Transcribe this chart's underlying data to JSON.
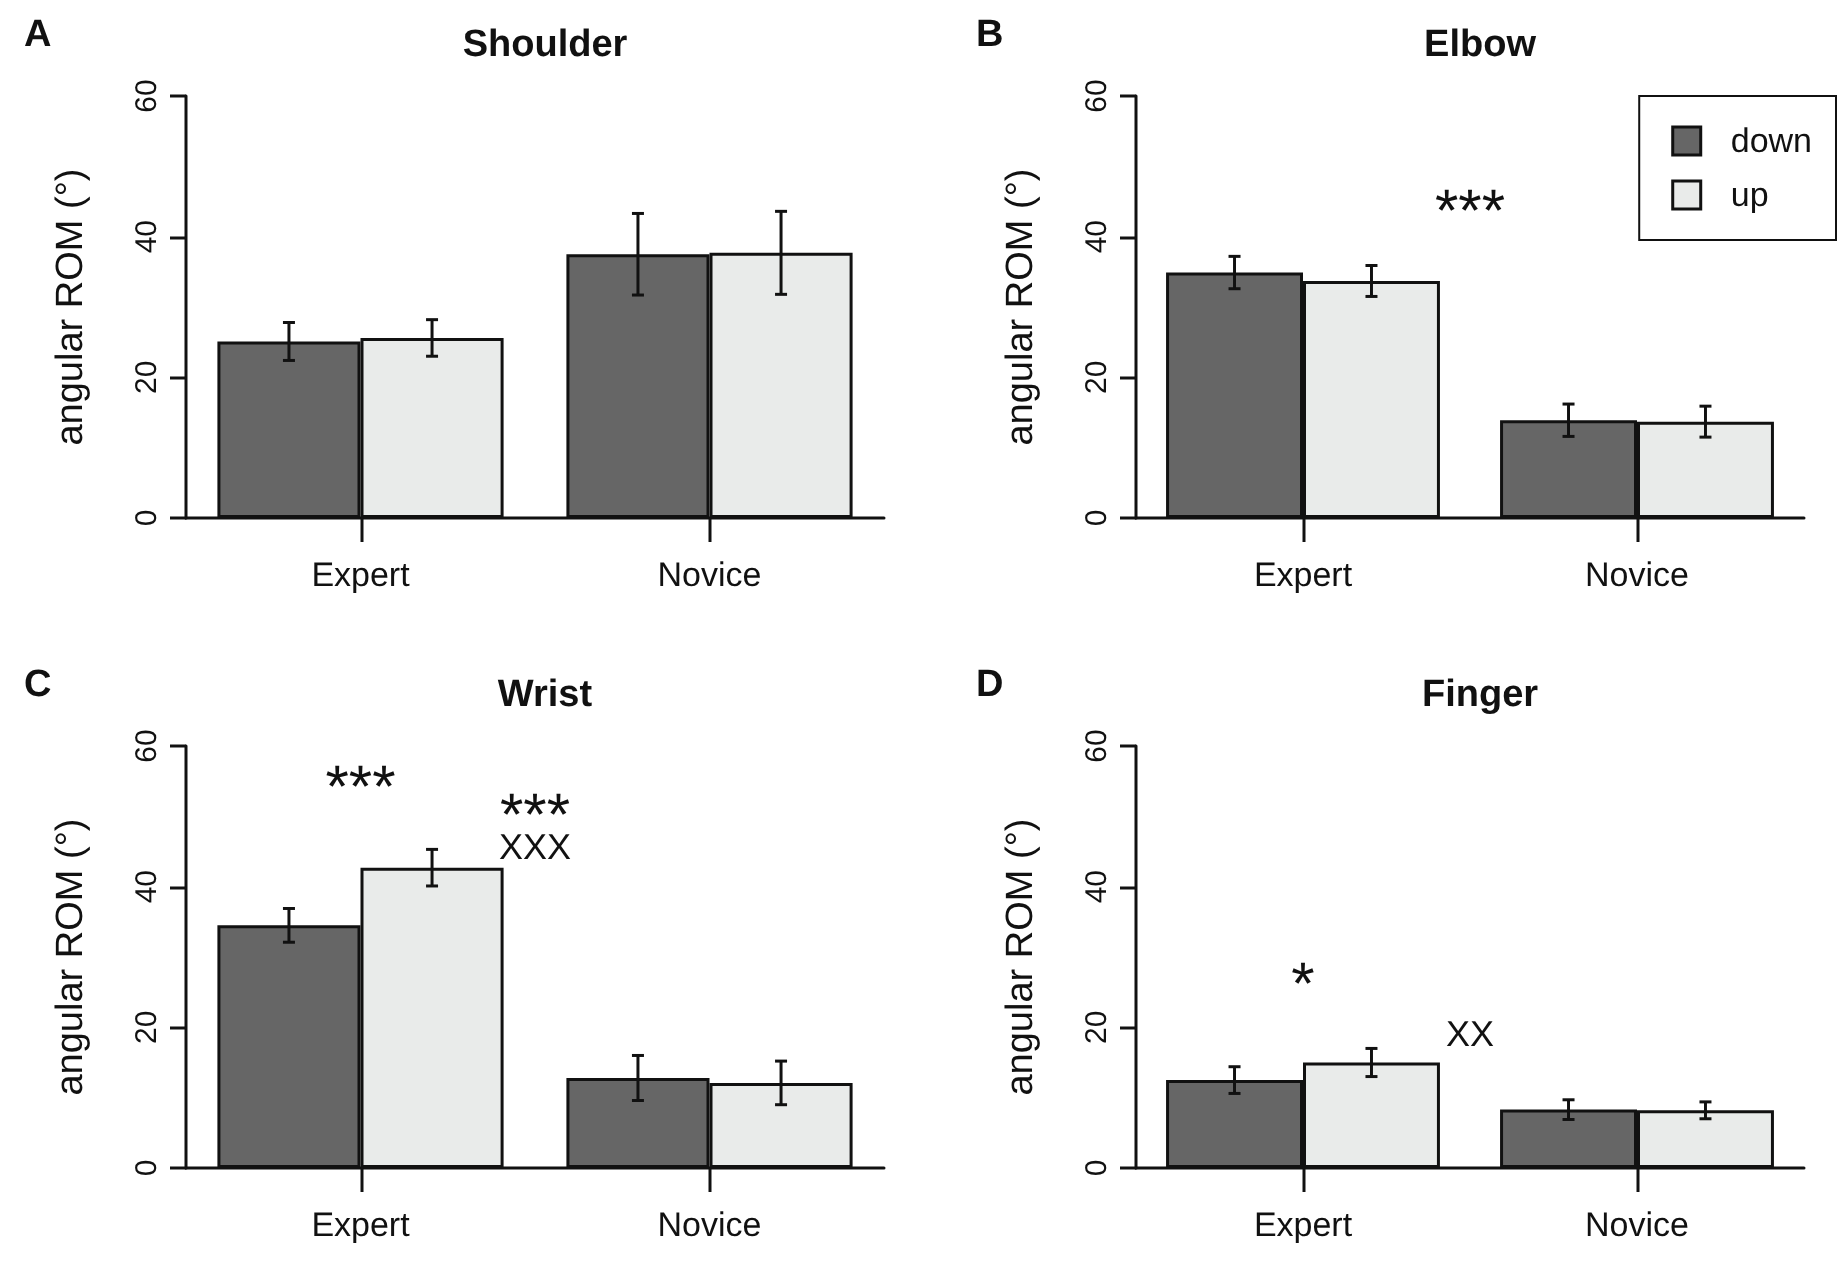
{
  "chart_data": [
    {
      "type": "bar",
      "title": "Shoulder",
      "ylabel": "angular ROM (°)",
      "categories": [
        "Expert",
        "Novice"
      ],
      "ylim": [
        0,
        60
      ],
      "yticks": [
        0,
        20,
        40,
        60
      ],
      "legend": false,
      "annotations": [
        "A"
      ],
      "series": [
        {
          "color": "#666666",
          "values": [
            25.1,
            37.5
          ],
          "errors": [
            2.7,
            5.8
          ]
        },
        {
          "color": "#e9ebea",
          "values": [
            25.6,
            37.7
          ],
          "errors": [
            2.6,
            5.9
          ]
        }
      ]
    },
    {
      "type": "bar",
      "title": "Elbow",
      "ylabel": "angular ROM (°)",
      "categories": [
        "Expert",
        "Novice"
      ],
      "ylim": [
        0,
        60
      ],
      "yticks": [
        0,
        20,
        40,
        60
      ],
      "legend": "top right",
      "annotations": [
        "B",
        "***"
      ],
      "series": [
        {
          "name": "down",
          "color": "#666666",
          "values": [
            34.9,
            13.9
          ],
          "errors": [
            2.3,
            2.3
          ]
        },
        {
          "name": "up",
          "color": "#e9ebea",
          "values": [
            33.7,
            13.7
          ],
          "errors": [
            2.2,
            2.2
          ]
        }
      ]
    },
    {
      "type": "bar",
      "title": "Wrist",
      "ylabel": "angular ROM (°)",
      "categories": [
        "Expert",
        "Novice"
      ],
      "ylim": [
        0,
        60
      ],
      "yticks": [
        0,
        20,
        40,
        60
      ],
      "legend": false,
      "annotations": [
        "C",
        "***",
        "***",
        "XXX"
      ],
      "series": [
        {
          "color": "#666666",
          "values": [
            34.5,
            12.8
          ],
          "errors": [
            2.4,
            3.2
          ]
        },
        {
          "color": "#e9ebea",
          "values": [
            42.7,
            12.1
          ],
          "errors": [
            2.6,
            3.1
          ]
        }
      ]
    },
    {
      "type": "bar",
      "title": "Finger",
      "ylabel": "angular ROM (°)",
      "categories": [
        "Expert",
        "Novice"
      ],
      "ylim": [
        0,
        60
      ],
      "yticks": [
        0,
        20,
        40,
        60
      ],
      "legend": false,
      "annotations": [
        "D",
        "*",
        "XX"
      ],
      "series": [
        {
          "color": "#666666",
          "values": [
            12.5,
            8.3
          ],
          "errors": [
            1.9,
            1.4
          ]
        },
        {
          "color": "#e9ebea",
          "values": [
            15.0,
            8.2
          ],
          "errors": [
            2.0,
            1.2
          ]
        }
      ]
    }
  ]
}
